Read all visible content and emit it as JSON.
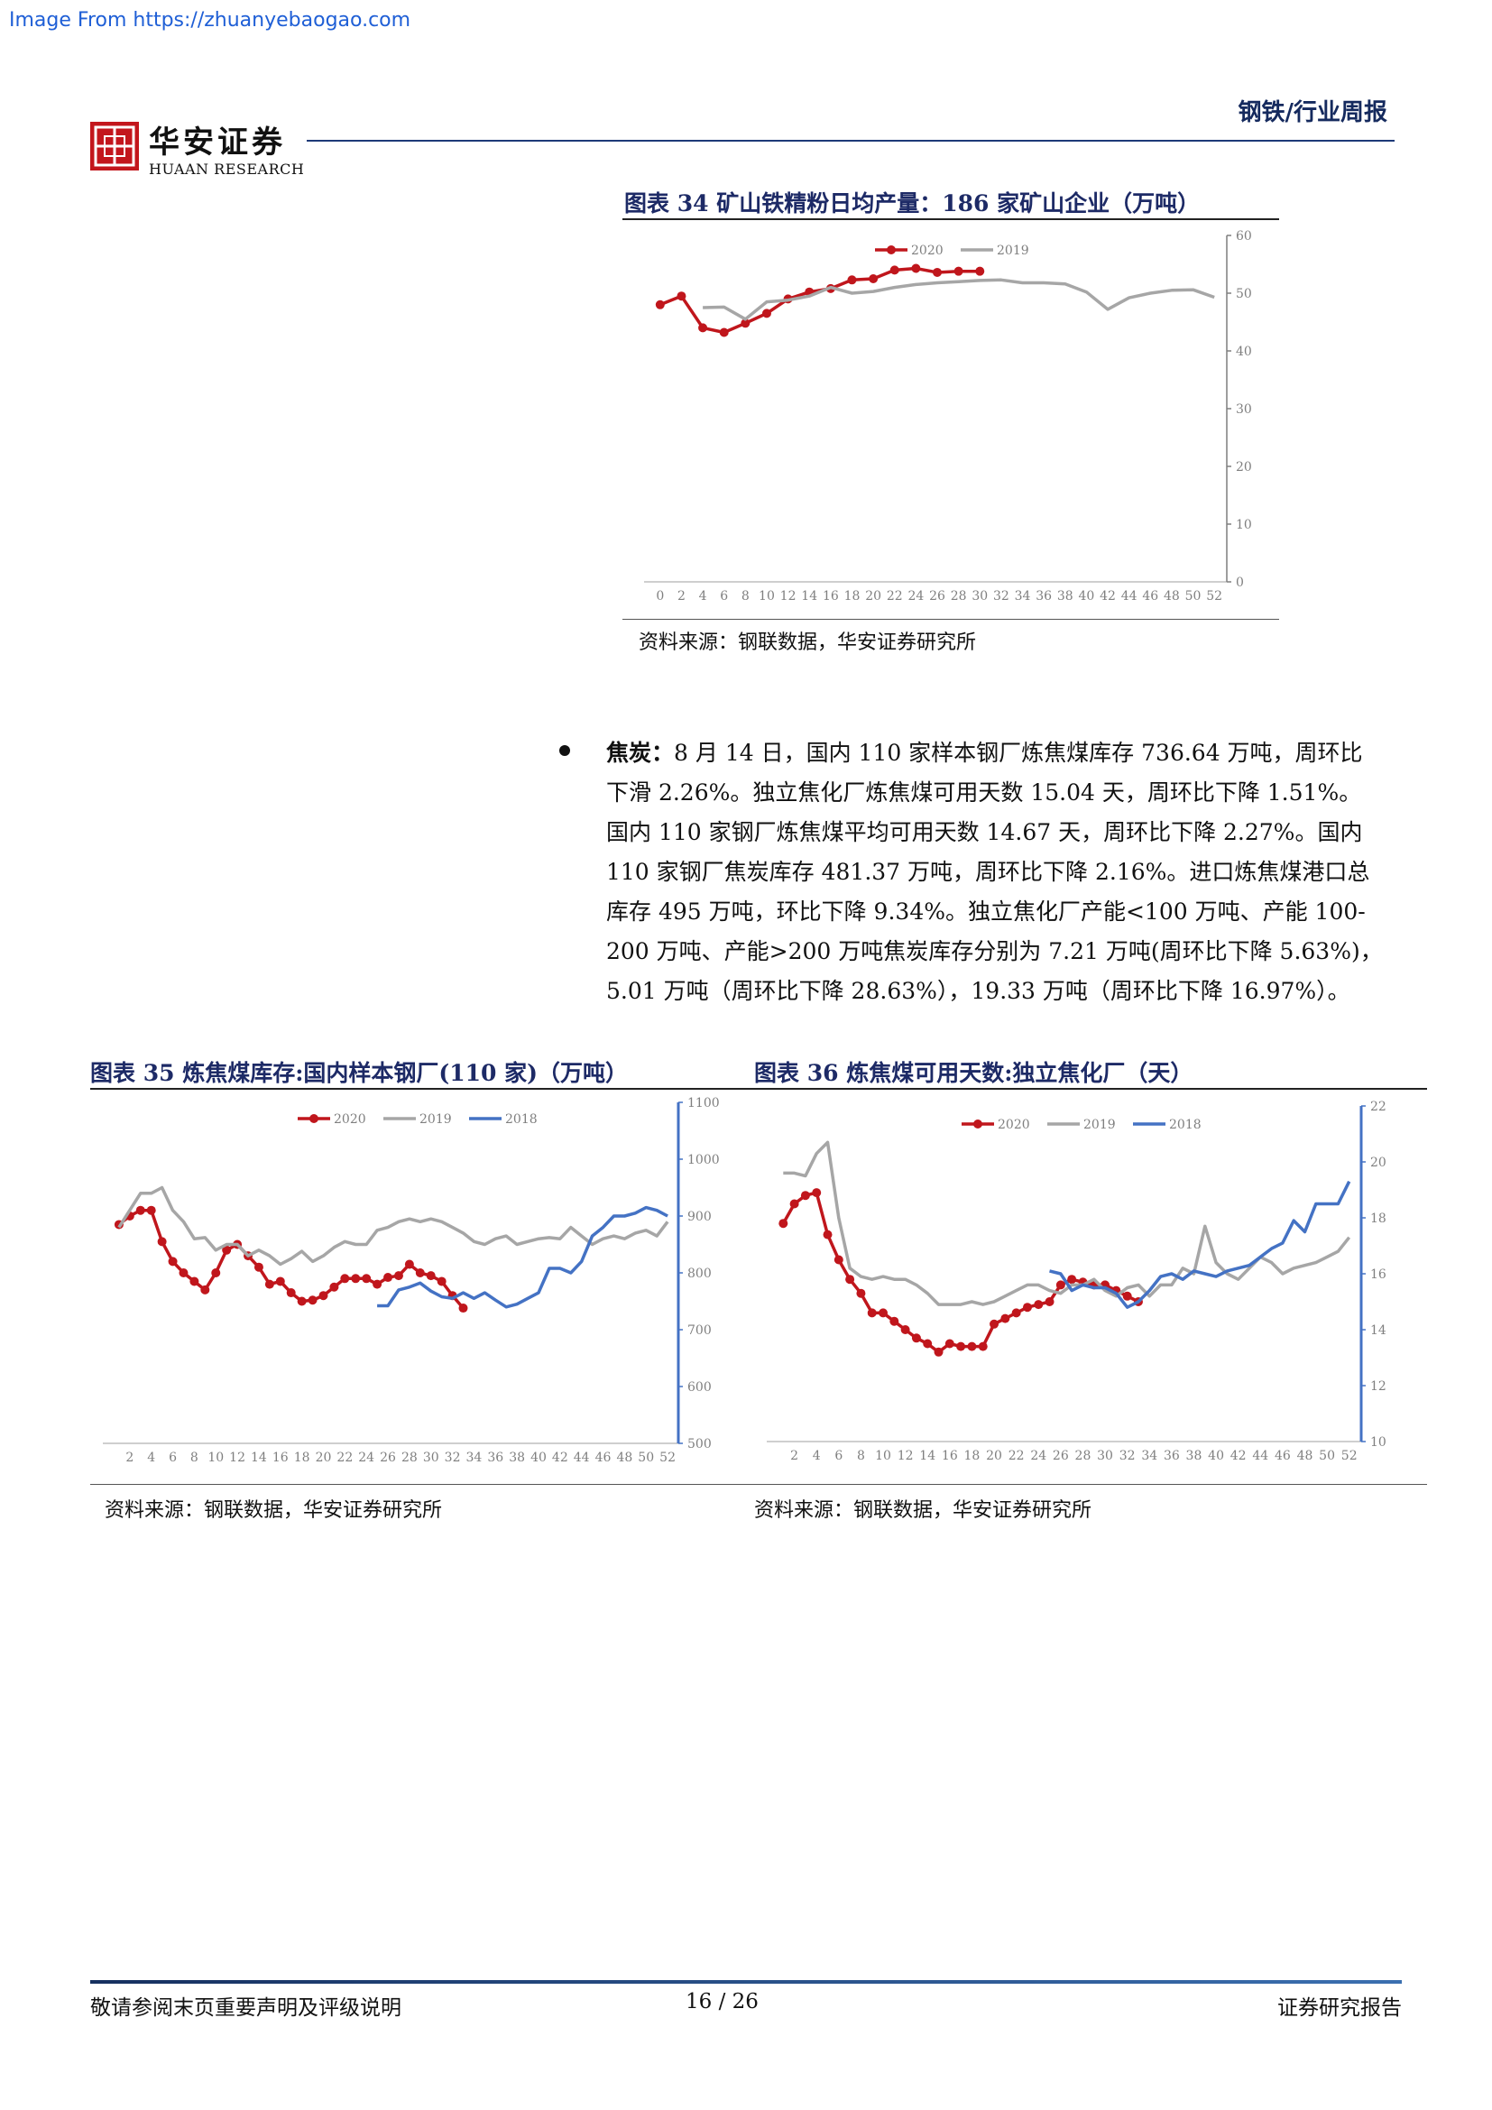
{
  "watermark": "Image From https://zhuanyebaogao.com",
  "header": {
    "logo_cn": "华安证券",
    "logo_en": "HUAAN RESEARCH",
    "category": "钢铁/行业周报"
  },
  "figure34": {
    "title": "图表 34 矿山铁精粉日均产量：186 家矿山企业（万吨）",
    "source": "资料来源：钢联数据，华安证券研究所",
    "chart_data": {
      "type": "line",
      "title": "图表 34 矿山铁精粉日均产量：186 家矿山企业（万吨）",
      "x_ticks": [
        0,
        2,
        4,
        6,
        8,
        10,
        12,
        14,
        16,
        18,
        20,
        22,
        24,
        26,
        28,
        30,
        32,
        34,
        36,
        38,
        40,
        42,
        44,
        46,
        48,
        50,
        52
      ],
      "y_ticks": [
        0,
        10,
        20,
        30,
        40,
        50,
        60
      ],
      "ylim": [
        0,
        60
      ],
      "xlim": [
        -1,
        53
      ],
      "y_axis_side": "right",
      "legend_position": "top-center",
      "series": [
        {
          "name": "2020",
          "color": "#c0161c",
          "marker": true,
          "x": [
            0,
            2,
            4,
            6,
            8,
            10,
            12,
            14,
            16,
            18,
            20,
            22,
            24,
            26,
            28,
            30
          ],
          "y": [
            48,
            49.5,
            44,
            43.2,
            44.8,
            46.5,
            49,
            50.2,
            50.8,
            52.3,
            52.5,
            54,
            54.3,
            53.6,
            53.8,
            53.8
          ]
        },
        {
          "name": "2019",
          "color": "#a6a6a6",
          "marker": false,
          "x": [
            4,
            6,
            8,
            10,
            12,
            14,
            16,
            18,
            20,
            22,
            24,
            26,
            28,
            30,
            32,
            34,
            36,
            38,
            40,
            42,
            44,
            46,
            48,
            50,
            52
          ],
          "y": [
            47.5,
            47.6,
            45.5,
            48.5,
            48.8,
            49.5,
            51,
            50,
            50.3,
            51,
            51.5,
            51.8,
            52,
            52.2,
            52.3,
            51.8,
            51.8,
            51.6,
            50.2,
            47.2,
            49.2,
            50,
            50.5,
            50.6,
            49.3
          ]
        }
      ]
    }
  },
  "coke_paragraph": {
    "label": "焦炭：",
    "lines": [
      "8 月 14 日，国内 110 家样本钢厂炼焦煤库存 736.64 万吨，周环比",
      "下滑 2.26%。独立焦化厂炼焦煤可用天数 15.04 天，周环比下降 1.51%。",
      "国内 110 家钢厂炼焦煤平均可用天数 14.67 天，周环比下降 2.27%。国内",
      "110 家钢厂焦炭库存 481.37 万吨，周环比下降 2.16%。进口炼焦煤港口总",
      "库存 495 万吨，环比下降 9.34%。独立焦化厂产能<100 万吨、产能 100-",
      "200 万吨、产能>200 万吨焦炭库存分别为 7.21 万吨(周环比下降 5.63%)，",
      "5.01 万吨（周环比下降 28.63%），19.33 万吨（周环比下降 16.97%）。"
    ]
  },
  "figure35": {
    "title": "图表 35 炼焦煤库存:国内样本钢厂(110 家)（万吨）",
    "source": "资料来源：钢联数据，华安证券研究所",
    "chart_data": {
      "type": "line",
      "title": "图表 35 炼焦煤库存:国内样本钢厂(110 家)（万吨）",
      "x_ticks": [
        2,
        4,
        6,
        8,
        10,
        12,
        14,
        16,
        18,
        20,
        22,
        24,
        26,
        28,
        30,
        32,
        34,
        36,
        38,
        40,
        42,
        44,
        46,
        48,
        50,
        52
      ],
      "y_ticks": [
        500,
        600,
        700,
        800,
        900,
        1000,
        1100
      ],
      "ylim": [
        500,
        1100
      ],
      "xlim": [
        0,
        53
      ],
      "y_axis_side": "right",
      "legend_position": "top-center",
      "series": [
        {
          "name": "2020",
          "color": "#c0161c",
          "marker": true,
          "x": [
            1,
            2,
            3,
            4,
            5,
            6,
            7,
            8,
            9,
            10,
            11,
            12,
            13,
            14,
            15,
            16,
            17,
            18,
            19,
            20,
            21,
            22,
            23,
            24,
            25,
            26,
            27,
            28,
            29,
            30,
            31,
            32,
            33
          ],
          "y": [
            885,
            900,
            910,
            910,
            855,
            820,
            800,
            785,
            770,
            800,
            840,
            850,
            830,
            810,
            780,
            785,
            765,
            750,
            752,
            760,
            775,
            790,
            790,
            790,
            780,
            792,
            795,
            815,
            800,
            795,
            785,
            760,
            738
          ]
        },
        {
          "name": "2019",
          "color": "#a6a6a6",
          "marker": false,
          "x": [
            1,
            2,
            3,
            4,
            5,
            6,
            7,
            8,
            9,
            10,
            11,
            12,
            13,
            14,
            15,
            16,
            17,
            18,
            19,
            20,
            21,
            22,
            23,
            24,
            25,
            26,
            27,
            28,
            29,
            30,
            31,
            32,
            33,
            34,
            35,
            36,
            37,
            38,
            39,
            40,
            41,
            42,
            43,
            44,
            45,
            46,
            47,
            48,
            49,
            50,
            51,
            52
          ],
          "y": [
            880,
            910,
            940,
            940,
            950,
            910,
            890,
            860,
            862,
            840,
            850,
            850,
            830,
            840,
            830,
            815,
            825,
            838,
            820,
            830,
            845,
            855,
            850,
            850,
            875,
            880,
            890,
            895,
            890,
            895,
            890,
            880,
            870,
            855,
            850,
            860,
            865,
            850,
            855,
            860,
            862,
            860,
            880,
            865,
            850,
            860,
            865,
            860,
            870,
            875,
            865,
            890
          ]
        },
        {
          "name": "2018",
          "color": "#4472c4",
          "marker": false,
          "x": [
            25,
            26,
            27,
            28,
            29,
            30,
            31,
            32,
            33,
            34,
            35,
            36,
            37,
            38,
            39,
            40,
            41,
            42,
            43,
            44,
            45,
            46,
            47,
            48,
            49,
            50,
            51,
            52
          ],
          "y": [
            742,
            742,
            770,
            775,
            782,
            768,
            758,
            755,
            765,
            755,
            765,
            752,
            740,
            745,
            755,
            765,
            808,
            808,
            800,
            820,
            865,
            880,
            900,
            900,
            905,
            915,
            910,
            900
          ]
        }
      ]
    }
  },
  "figure36": {
    "title": "图表 36 炼焦煤可用天数:独立焦化厂（天）",
    "source": "资料来源：钢联数据，华安证券研究所",
    "chart_data": {
      "type": "line",
      "title": "图表 36 炼焦煤可用天数:独立焦化厂（天）",
      "x_ticks": [
        2,
        4,
        6,
        8,
        10,
        12,
        14,
        16,
        18,
        20,
        22,
        24,
        26,
        28,
        30,
        32,
        34,
        36,
        38,
        40,
        42,
        44,
        46,
        48,
        50,
        52
      ],
      "y_ticks": [
        10,
        12,
        14,
        16,
        18,
        20,
        22
      ],
      "ylim": [
        10,
        22
      ],
      "xlim": [
        0,
        53
      ],
      "y_axis_side": "right",
      "legend_position": "top-center",
      "series": [
        {
          "name": "2020",
          "color": "#c0161c",
          "marker": true,
          "x": [
            1,
            2,
            3,
            4,
            5,
            6,
            7,
            8,
            9,
            10,
            11,
            12,
            13,
            14,
            15,
            16,
            17,
            18,
            19,
            20,
            21,
            22,
            23,
            24,
            25,
            26,
            27,
            28,
            29,
            30,
            31,
            32,
            33
          ],
          "y": [
            17.8,
            18.5,
            18.8,
            18.9,
            17.4,
            16.5,
            15.8,
            15.3,
            14.6,
            14.6,
            14.3,
            14.0,
            13.7,
            13.5,
            13.2,
            13.5,
            13.4,
            13.4,
            13.4,
            14.2,
            14.4,
            14.6,
            14.8,
            14.9,
            15.0,
            15.6,
            15.8,
            15.7,
            15.6,
            15.6,
            15.4,
            15.2,
            15.0
          ]
        },
        {
          "name": "2019",
          "color": "#a6a6a6",
          "marker": false,
          "x": [
            1,
            2,
            3,
            4,
            5,
            6,
            7,
            8,
            9,
            10,
            11,
            12,
            13,
            14,
            15,
            16,
            17,
            18,
            19,
            20,
            21,
            22,
            23,
            24,
            25,
            26,
            27,
            28,
            29,
            30,
            31,
            32,
            33,
            34,
            35,
            36,
            37,
            38,
            39,
            40,
            41,
            42,
            43,
            44,
            45,
            46,
            47,
            48,
            49,
            50,
            51,
            52
          ],
          "y": [
            19.6,
            19.6,
            19.5,
            20.3,
            20.7,
            18.0,
            16.2,
            15.9,
            15.8,
            15.9,
            15.8,
            15.8,
            15.6,
            15.3,
            14.9,
            14.9,
            14.9,
            15.0,
            14.9,
            15.0,
            15.2,
            15.4,
            15.6,
            15.6,
            15.4,
            15.3,
            15.6,
            15.6,
            15.8,
            15.4,
            15.2,
            15.5,
            15.6,
            15.2,
            15.6,
            15.6,
            16.2,
            16.0,
            17.7,
            16.4,
            16.0,
            15.8,
            16.2,
            16.6,
            16.4,
            16.0,
            16.2,
            16.3,
            16.4,
            16.6,
            16.8,
            17.3
          ]
        },
        {
          "name": "2018",
          "color": "#4472c4",
          "marker": false,
          "x": [
            25,
            26,
            27,
            28,
            29,
            30,
            31,
            32,
            33,
            34,
            35,
            36,
            37,
            38,
            39,
            40,
            41,
            42,
            43,
            44,
            45,
            46,
            47,
            48,
            49,
            50,
            51,
            52
          ],
          "y": [
            16.1,
            16.0,
            15.4,
            15.6,
            15.5,
            15.5,
            15.3,
            14.8,
            15.0,
            15.4,
            15.9,
            16.0,
            15.8,
            16.1,
            16.0,
            15.9,
            16.1,
            16.2,
            16.3,
            16.6,
            16.9,
            17.1,
            17.9,
            17.5,
            18.5,
            18.5,
            18.5,
            19.3
          ]
        }
      ]
    }
  },
  "footer": {
    "left": "敬请参阅末页重要声明及评级说明",
    "center": "16 / 26",
    "right": "证券研究报告"
  }
}
